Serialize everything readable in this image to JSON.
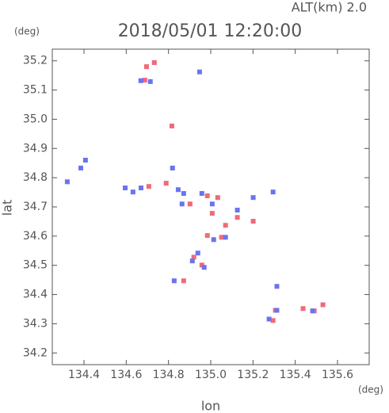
{
  "chart_data": {
    "type": "scatter",
    "title": "2018/05/01 12:20:00",
    "subtitle": "ALT(km) 2.0",
    "x_label": "lon",
    "y_label": "lat",
    "x_unit": "(deg)",
    "y_unit": "(deg)",
    "xlim": [
      134.25,
      135.75
    ],
    "ylim": [
      34.16,
      35.24
    ],
    "xticks": [
      134.4,
      134.6,
      134.8,
      {
        "value": 135.0,
        "label": "135.0"
      },
      135.2,
      135.4,
      135.6
    ],
    "yticks": [
      34.2,
      34.3,
      34.4,
      34.5,
      34.6,
      34.7,
      34.8,
      34.9,
      {
        "value": 35.0,
        "label": "35.0"
      },
      35.1,
      35.2
    ],
    "series": [
      {
        "color": "#f06a78",
        "x": [
          134.696,
          134.733,
          134.688,
          134.816,
          134.707,
          134.789,
          134.902,
          134.984,
          135.033,
          135.007,
          135.07,
          135.051,
          135.126,
          135.201,
          134.984,
          134.872,
          134.958,
          134.92,
          135.295,
          135.437,
          135.531,
          135.49,
          135.306
        ],
        "values": [
          35.18,
          35.194,
          35.134,
          34.977,
          34.77,
          34.781,
          34.71,
          34.738,
          34.732,
          34.678,
          34.637,
          34.596,
          34.664,
          34.651,
          34.602,
          34.447,
          34.501,
          34.528,
          34.311,
          34.352,
          34.365,
          34.344,
          34.346
        ]
      },
      {
        "color": "#6a74f0",
        "x": [
          134.669,
          134.714,
          134.947,
          134.385,
          134.321,
          134.407,
          134.595,
          134.632,
          134.67,
          134.819,
          134.846,
          134.872,
          134.864,
          134.958,
          135.007,
          135.126,
          135.07,
          135.014,
          135.295,
          135.201,
          134.913,
          134.969,
          134.939,
          134.827,
          135.313,
          135.313,
          135.276,
          135.482
        ],
        "values": [
          35.132,
          35.129,
          35.162,
          34.833,
          34.786,
          34.86,
          34.765,
          34.751,
          34.765,
          34.833,
          34.759,
          34.746,
          34.71,
          34.746,
          34.71,
          34.689,
          34.596,
          34.588,
          34.751,
          34.732,
          34.515,
          34.493,
          34.542,
          34.447,
          34.428,
          34.346,
          34.316,
          34.344
        ]
      }
    ]
  }
}
